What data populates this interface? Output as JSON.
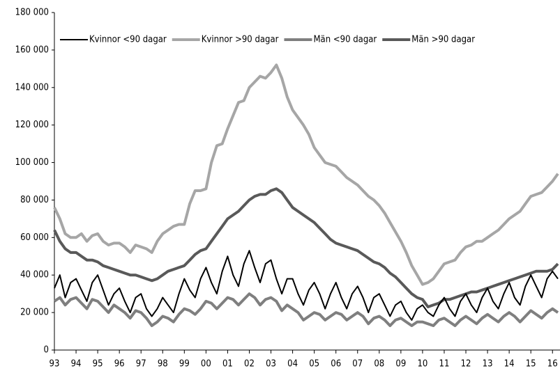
{
  "chart_data": {
    "type": "line",
    "categories": [
      "93",
      null,
      null,
      null,
      "94",
      null,
      null,
      null,
      "95",
      null,
      null,
      null,
      "96",
      null,
      null,
      null,
      "97",
      null,
      null,
      null,
      "98",
      null,
      null,
      null,
      "99",
      null,
      null,
      null,
      "00",
      null,
      null,
      null,
      "01",
      null,
      null,
      null,
      "02",
      null,
      null,
      null,
      "03",
      null,
      null,
      null,
      "04",
      null,
      null,
      null,
      "05",
      null,
      null,
      null,
      "06",
      null,
      null,
      null,
      "07",
      null,
      null,
      null,
      "08",
      null,
      null,
      null,
      "09",
      null,
      null,
      null,
      "10",
      null,
      null,
      null,
      "11",
      null,
      null,
      null,
      "12",
      null,
      null,
      null,
      "13",
      null,
      null,
      null,
      "14",
      null,
      null,
      null,
      "15",
      null,
      null,
      null,
      "16",
      null
    ],
    "series": [
      {
        "name": "Kvinnor <90 dagar",
        "color": "#000000",
        "width": 2,
        "values": [
          33000,
          40000,
          28000,
          36000,
          38000,
          32000,
          26000,
          36000,
          40000,
          32000,
          24000,
          30000,
          33000,
          26000,
          20000,
          28000,
          30000,
          22000,
          18000,
          22000,
          28000,
          24000,
          20000,
          30000,
          38000,
          32000,
          28000,
          38000,
          44000,
          36000,
          30000,
          42000,
          50000,
          40000,
          34000,
          46000,
          53000,
          44000,
          36000,
          46000,
          48000,
          38000,
          30000,
          38000,
          38000,
          30000,
          24000,
          32000,
          36000,
          30000,
          22000,
          30000,
          36000,
          28000,
          22000,
          30000,
          34000,
          28000,
          20000,
          28000,
          30000,
          24000,
          18000,
          24000,
          26000,
          20000,
          16000,
          22000,
          24000,
          20000,
          18000,
          24000,
          28000,
          22000,
          18000,
          26000,
          30000,
          24000,
          20000,
          28000,
          33000,
          26000,
          22000,
          30000,
          36000,
          28000,
          24000,
          34000,
          40000,
          34000,
          28000,
          38000,
          42000,
          38000
        ]
      },
      {
        "name": "Kvinnor >90 dagar",
        "color": "#a6a6a6",
        "width": 4,
        "values": [
          76000,
          70000,
          62000,
          60000,
          60000,
          62000,
          58000,
          61000,
          62000,
          58000,
          56000,
          57000,
          57000,
          55000,
          52000,
          56000,
          55000,
          54000,
          52000,
          58000,
          62000,
          64000,
          66000,
          67000,
          67000,
          78000,
          85000,
          85000,
          86000,
          100000,
          109000,
          110000,
          118000,
          125000,
          132000,
          133000,
          140000,
          143000,
          146000,
          145000,
          148000,
          152000,
          145000,
          135000,
          128000,
          124000,
          120000,
          115000,
          108000,
          104000,
          100000,
          99000,
          98000,
          95000,
          92000,
          90000,
          88000,
          85000,
          82000,
          80000,
          77000,
          73000,
          68000,
          63000,
          58000,
          52000,
          45000,
          40000,
          35000,
          36000,
          38000,
          42000,
          46000,
          47000,
          48000,
          52000,
          55000,
          56000,
          58000,
          58000,
          60000,
          62000,
          64000,
          67000,
          70000,
          72000,
          74000,
          78000,
          82000,
          83000,
          84000,
          87000,
          90000,
          94000
        ]
      },
      {
        "name": "Män <90 dagar",
        "color": "#7f7f7f",
        "width": 4,
        "values": [
          26000,
          28000,
          24000,
          27000,
          28000,
          25000,
          22000,
          27000,
          26000,
          23000,
          20000,
          24000,
          22000,
          20000,
          17000,
          21000,
          20000,
          17000,
          13000,
          15000,
          18000,
          17000,
          15000,
          19000,
          22000,
          21000,
          19000,
          22000,
          26000,
          25000,
          22000,
          25000,
          28000,
          27000,
          24000,
          27000,
          30000,
          28000,
          24000,
          27000,
          28000,
          26000,
          21000,
          24000,
          22000,
          20000,
          16000,
          18000,
          20000,
          19000,
          16000,
          18000,
          20000,
          19000,
          16000,
          18000,
          20000,
          18000,
          14000,
          17000,
          18000,
          16000,
          13000,
          16000,
          17000,
          15000,
          13000,
          15000,
          15000,
          14000,
          13000,
          16000,
          17000,
          15000,
          13000,
          16000,
          18000,
          16000,
          14000,
          17000,
          19000,
          17000,
          15000,
          18000,
          20000,
          18000,
          15000,
          18000,
          21000,
          19000,
          17000,
          20000,
          22000,
          20000
        ]
      },
      {
        "name": "Män >90 dagar",
        "color": "#595959",
        "width": 4,
        "values": [
          64000,
          58000,
          54000,
          52000,
          52000,
          50000,
          48000,
          48000,
          47000,
          45000,
          44000,
          43000,
          42000,
          41000,
          40000,
          40000,
          39000,
          38000,
          37000,
          38000,
          40000,
          42000,
          43000,
          44000,
          45000,
          48000,
          51000,
          53000,
          54000,
          58000,
          62000,
          66000,
          70000,
          72000,
          74000,
          77000,
          80000,
          82000,
          83000,
          83000,
          85000,
          86000,
          84000,
          80000,
          76000,
          74000,
          72000,
          70000,
          68000,
          65000,
          62000,
          59000,
          57000,
          56000,
          55000,
          54000,
          53000,
          51000,
          49000,
          47000,
          46000,
          44000,
          41000,
          39000,
          36000,
          33000,
          30000,
          28000,
          27000,
          23000,
          24000,
          25000,
          27000,
          27000,
          28000,
          29000,
          30000,
          31000,
          31000,
          32000,
          33000,
          34000,
          35000,
          36000,
          37000,
          38000,
          39000,
          40000,
          41000,
          42000,
          42000,
          42000,
          43000,
          46000
        ]
      }
    ],
    "ylim": [
      0,
      180000
    ],
    "yticks": [
      0,
      {
        "value": 20000,
        "label": "20 000"
      },
      {
        "value": 40000,
        "label": "40 000"
      },
      {
        "value": 60000,
        "label": "60 000"
      },
      {
        "value": 80000,
        "label": "80 000"
      },
      {
        "value": 100000,
        "label": "100 000"
      },
      {
        "value": 120000,
        "label": "120 000"
      },
      {
        "value": 140000,
        "label": "140 000"
      },
      {
        "value": 160000,
        "label": "160 000"
      },
      {
        "value": 180000,
        "label": "180 000"
      }
    ],
    "grid": false,
    "legend": "top"
  }
}
